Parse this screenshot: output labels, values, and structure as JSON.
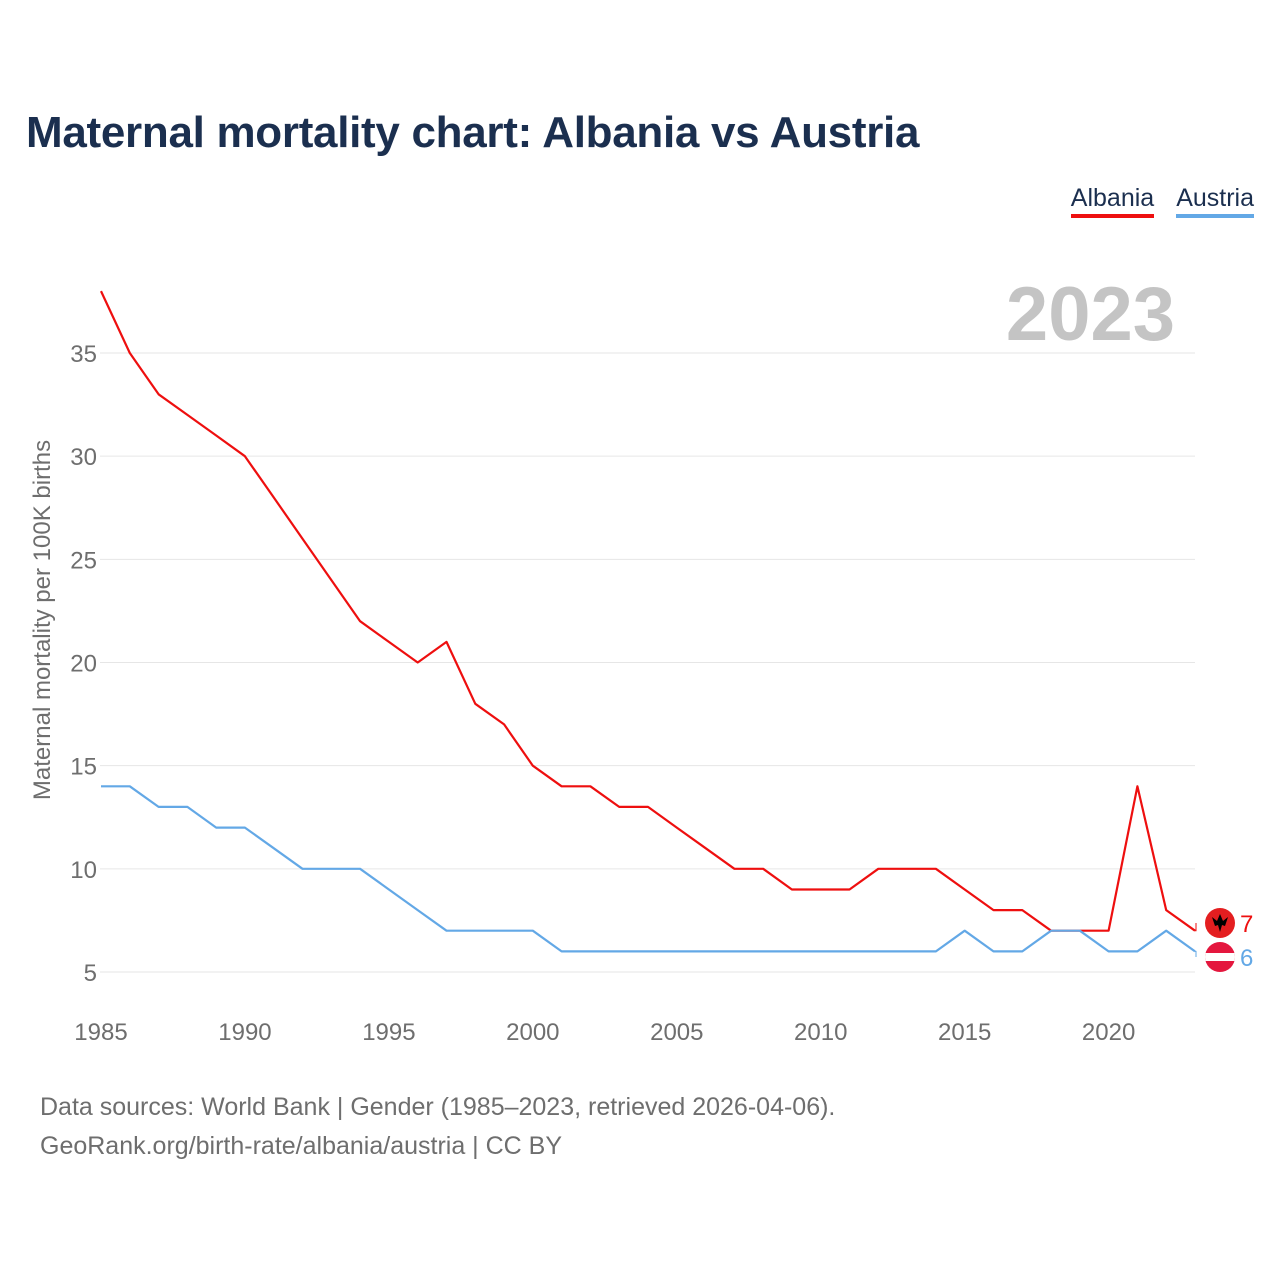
{
  "title": "Maternal mortality chart: Albania vs Austria",
  "legend": {
    "albania": "Albania",
    "austria": "Austria"
  },
  "year_label": "2023",
  "colors": {
    "albania": "#ee0f0f",
    "austria": "#63a8e6",
    "title": "#1b2f4f",
    "grid": "#e6e6e6",
    "axis_text": "#6e6e6e"
  },
  "chart_data": {
    "type": "line",
    "title": "Maternal mortality chart: Albania vs Austria",
    "xlabel": "",
    "ylabel": "Maternal mortality per 100K births",
    "x": [
      1985,
      1986,
      1987,
      1988,
      1989,
      1990,
      1991,
      1992,
      1993,
      1994,
      1995,
      1996,
      1997,
      1998,
      1999,
      2000,
      2001,
      2002,
      2003,
      2004,
      2005,
      2006,
      2007,
      2008,
      2009,
      2010,
      2011,
      2012,
      2013,
      2014,
      2015,
      2016,
      2017,
      2018,
      2019,
      2020,
      2021,
      2022,
      2023
    ],
    "xticks": [
      1985,
      1990,
      1995,
      2000,
      2005,
      2010,
      2015,
      2020
    ],
    "yticks": [
      5,
      10,
      15,
      20,
      25,
      30,
      35
    ],
    "xlim": [
      1985,
      2023
    ],
    "ylim": [
      3,
      38
    ],
    "grid": true,
    "series": [
      {
        "name": "Albania",
        "color": "#ee0f0f",
        "end_label": "7",
        "values": [
          38,
          35,
          33,
          32,
          31,
          30,
          28,
          26,
          24,
          22,
          21,
          20,
          21,
          18,
          17,
          15,
          14,
          14,
          13,
          13,
          12,
          11,
          10,
          10,
          9,
          9,
          9,
          10,
          10,
          10,
          9,
          8,
          8,
          7,
          7,
          7,
          14,
          8,
          7
        ]
      },
      {
        "name": "Austria",
        "color": "#63a8e6",
        "end_label": "6",
        "values": [
          14,
          14,
          13,
          13,
          12,
          12,
          11,
          10,
          10,
          10,
          9,
          8,
          7,
          7,
          7,
          7,
          6,
          6,
          6,
          6,
          6,
          6,
          6,
          6,
          6,
          6,
          6,
          6,
          6,
          6,
          7,
          6,
          6,
          7,
          7,
          6,
          6,
          7,
          6
        ]
      }
    ]
  },
  "source": {
    "line1": "Data sources: World Bank | Gender (1985–2023, retrieved 2026-04-06).",
    "line2": "GeoRank.org/birth-rate/albania/austria | CC BY"
  }
}
